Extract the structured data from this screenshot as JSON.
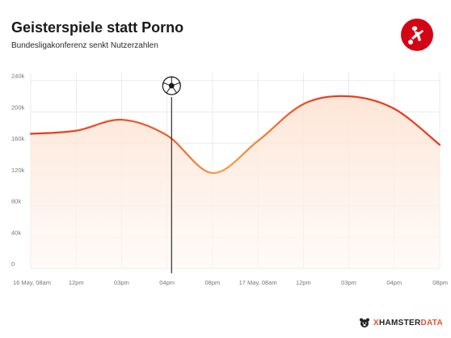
{
  "header": {
    "title": "Geisterspiele statt Porno",
    "subtitle": "Bundesligakonferenz senkt Nutzerzahlen"
  },
  "brand": {
    "x_label": "X",
    "name_label": "HAMSTER",
    "data_label": "DATA"
  },
  "logo_icon": "bundesliga-logo-icon",
  "marker_icon": "soccer-ball-icon",
  "colors": {
    "line_start": "#e93a1e",
    "line_dip": "#f4a04a",
    "fill": "#fde9dc",
    "grid": "#e3e3e3",
    "logo_red": "#d20515",
    "marker": "#1a1a1a"
  },
  "chart_data": {
    "type": "area",
    "title": "Geisterspiele statt Porno",
    "subtitle": "Bundesligakonferenz senkt Nutzerzahlen",
    "xlabel": "",
    "ylabel": "",
    "ylim": [
      0,
      250000
    ],
    "grid": true,
    "x_tick_labels": [
      "16 May, 08am",
      "12pm",
      "03pm",
      "04pm",
      "08pm",
      "17 May, 08am",
      "12pm",
      "03pm",
      "04pm",
      "08pm"
    ],
    "y_ticks": [
      0,
      40000,
      80000,
      120000,
      160000,
      200000,
      240000
    ],
    "y_tick_labels": [
      "0",
      "40k",
      "80k",
      "120k",
      "160k",
      "200k",
      "240k"
    ],
    "series": [
      {
        "values": [
          172000,
          176000,
          190000,
          170000,
          122000,
          163000,
          210000,
          220000,
          204000,
          158000
        ]
      }
    ],
    "marker_index": 3.1
  }
}
